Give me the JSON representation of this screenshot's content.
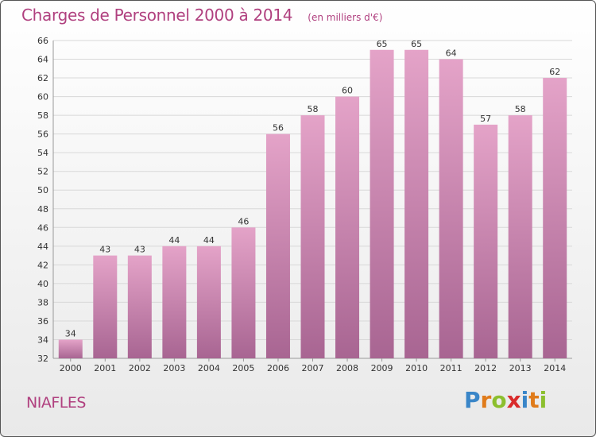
{
  "header": {
    "title": "Charges de Personnel 2000 à 2014",
    "unit": "(en milliers d'€)"
  },
  "footer": {
    "commune": "NIAFLES"
  },
  "logo": {
    "letters": [
      "P",
      "r",
      "o",
      "x",
      "i",
      "t",
      "i"
    ],
    "colors": [
      "#3a86c8",
      "#e07b1a",
      "#8cbf2e",
      "#d92b2b",
      "#3a86c8",
      "#e07b1a",
      "#8cbf2e"
    ]
  },
  "colors": {
    "bar_top": "#e4a3c8",
    "bar_bottom": "#a86592",
    "grid": "#d8d8d8",
    "text": "#333333",
    "title": "#b0407f"
  },
  "chart_data": {
    "type": "bar",
    "title": "Charges de Personnel 2000 à 2014",
    "unit": "(en milliers d'€)",
    "categories": [
      "2000",
      "2001",
      "2002",
      "2003",
      "2004",
      "2005",
      "2006",
      "2007",
      "2008",
      "2009",
      "2010",
      "2011",
      "2012",
      "2013",
      "2014"
    ],
    "values": [
      34,
      43,
      43,
      44,
      44,
      46,
      56,
      58,
      60,
      65,
      65,
      64,
      57,
      58,
      62
    ],
    "ylim": [
      32,
      66
    ],
    "yticks": [
      32,
      34,
      36,
      38,
      40,
      42,
      44,
      46,
      48,
      50,
      52,
      54,
      56,
      58,
      60,
      62,
      64,
      66
    ],
    "grid": true
  }
}
